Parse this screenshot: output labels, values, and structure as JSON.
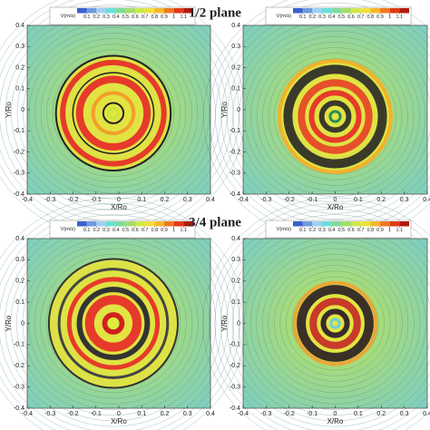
{
  "chart_data": [
    {
      "type": "contour",
      "title": "1/2 plane",
      "xlabel": "X/Ro",
      "ylabel": "Y/Ro",
      "xlim": [
        -0.4,
        0.4
      ],
      "ylim": [
        -0.4,
        0.4
      ],
      "xticks": [
        -0.4,
        -0.3,
        -0.2,
        -0.1,
        0,
        0.1,
        0.2,
        0.3,
        0.4
      ],
      "yticks": [
        -0.4,
        -0.3,
        -0.2,
        -0.1,
        0,
        0.1,
        0.2,
        0.3,
        0.4
      ],
      "colorbar": {
        "label": "V(m/s)",
        "ticks": [
          0.1,
          0.2,
          0.3,
          0.4,
          0.5,
          0.6,
          0.7,
          0.8,
          0.9,
          1,
          1.1
        ]
      }
    },
    {
      "type": "contour",
      "xlabel": "X/Ro",
      "ylabel": "Y/Ro",
      "xlim": [
        -0.4,
        0.4
      ],
      "ylim": [
        -0.4,
        0.4
      ],
      "xticks": [
        -0.4,
        -0.3,
        -0.2,
        -0.1,
        0,
        0.1,
        0.2,
        0.3,
        0.4
      ],
      "yticks": [
        -0.4,
        -0.3,
        -0.2,
        -0.1,
        0,
        0.1,
        0.2,
        0.3,
        0.4
      ],
      "colorbar": {
        "label": "V(m/s)",
        "ticks": [
          0.1,
          0.2,
          0.3,
          0.4,
          0.5,
          0.6,
          0.7,
          0.8,
          0.9,
          1,
          1.1
        ]
      }
    },
    {
      "type": "contour",
      "title": "3/4 plane",
      "xlabel": "X/Ro",
      "ylabel": "Y/Ro",
      "xlim": [
        -0.4,
        0.4
      ],
      "ylim": [
        -0.4,
        0.4
      ],
      "xticks": [
        -0.4,
        -0.3,
        -0.2,
        -0.1,
        0,
        0.1,
        0.2,
        0.3,
        0.4
      ],
      "yticks": [
        -0.4,
        -0.3,
        -0.2,
        -0.1,
        0,
        0.1,
        0.2,
        0.3,
        0.4
      ],
      "colorbar": {
        "label": "V(m/s)",
        "ticks": [
          0.1,
          0.2,
          0.3,
          0.4,
          0.5,
          0.6,
          0.7,
          0.8,
          0.9,
          1,
          1.1
        ]
      }
    },
    {
      "type": "contour",
      "xlabel": "X/Ro",
      "ylabel": "Y/Ro",
      "xlim": [
        -0.4,
        0.4
      ],
      "ylim": [
        -0.4,
        0.4
      ],
      "xticks": [
        -0.4,
        -0.3,
        -0.2,
        -0.1,
        0,
        0.1,
        0.2,
        0.3,
        0.4
      ],
      "yticks": [
        -0.4,
        -0.3,
        -0.2,
        -0.1,
        0,
        0.1,
        0.2,
        0.3,
        0.4
      ],
      "colorbar": {
        "label": "V(m/s)",
        "ticks": [
          0.1,
          0.2,
          0.3,
          0.4,
          0.5,
          0.6,
          0.7,
          0.8,
          0.9,
          1,
          1.1
        ]
      }
    }
  ]
}
